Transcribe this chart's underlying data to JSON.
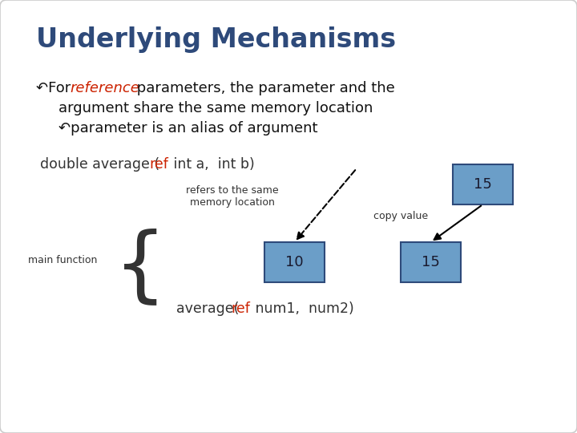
{
  "title": "Underlying Mechanisms",
  "title_color": "#2E4A7A",
  "title_fontsize": 24,
  "bg_color": "#E8E8E8",
  "bullet_ref_color": "#CC2200",
  "bullet_text_color": "#111111",
  "box_color": "#6B9EC8",
  "box_edge_color": "#2E4A7A",
  "box_text_color": "#1A1A2E",
  "top_box_value": "15",
  "bottom_box1_value": "10",
  "bottom_box2_value": "15",
  "label_refers": "refers to the same\nmemory location",
  "label_copy": "copy value",
  "main_func_label": "main function"
}
